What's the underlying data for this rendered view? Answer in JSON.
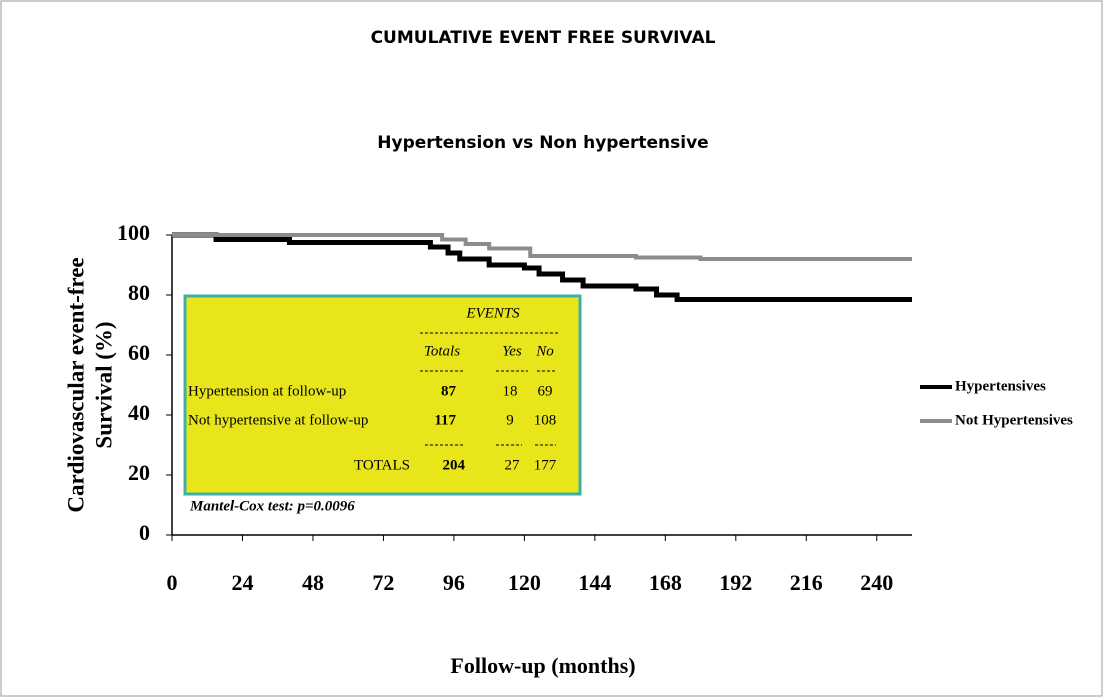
{
  "chart_data": {
    "type": "step",
    "title": "CUMULATIVE EVENT FREE SURVIVAL",
    "subtitle": "Hypertension vs Non hypertensive",
    "x_label": "Follow-up (months)",
    "y_label": [
      "Cardiovascular  event-free",
      "Survival (%)"
    ],
    "xlim": [
      0,
      252
    ],
    "ylim": [
      0,
      100
    ],
    "xticks": [
      0,
      24,
      48,
      72,
      96,
      120,
      144,
      168,
      192,
      216,
      240
    ],
    "yticks": [
      0,
      20,
      40,
      60,
      80,
      100
    ],
    "series": [
      {
        "name": "Hypertensives",
        "color": "#000000",
        "x": [
          0,
          15,
          40,
          88,
          94,
          98,
          108,
          120,
          125,
          133,
          140,
          158,
          165,
          172,
          252
        ],
        "values": [
          100,
          98.5,
          97.5,
          96,
          94,
          92,
          90,
          89,
          87,
          85,
          83,
          82,
          80,
          78.5,
          78.5
        ]
      },
      {
        "name": "Not Hypertensives",
        "color": "#8c8c8c",
        "x": [
          0,
          92,
          100,
          108,
          122,
          158,
          180,
          252
        ],
        "values": [
          100,
          98.5,
          97,
          95.5,
          93,
          92.5,
          92,
          92
        ]
      }
    ],
    "annotation": "Mantel-Cox test: p=0.0096",
    "inset": {
      "title": "EVENTS",
      "columns": [
        "Totals",
        "Yes",
        "No"
      ],
      "rows": [
        [
          "Hypertension at follow-up",
          87,
          18,
          69
        ],
        [
          "Not hypertensive at follow-up",
          117,
          9,
          108
        ]
      ],
      "totals": [
        "TOTALS",
        204,
        27,
        177
      ]
    }
  }
}
